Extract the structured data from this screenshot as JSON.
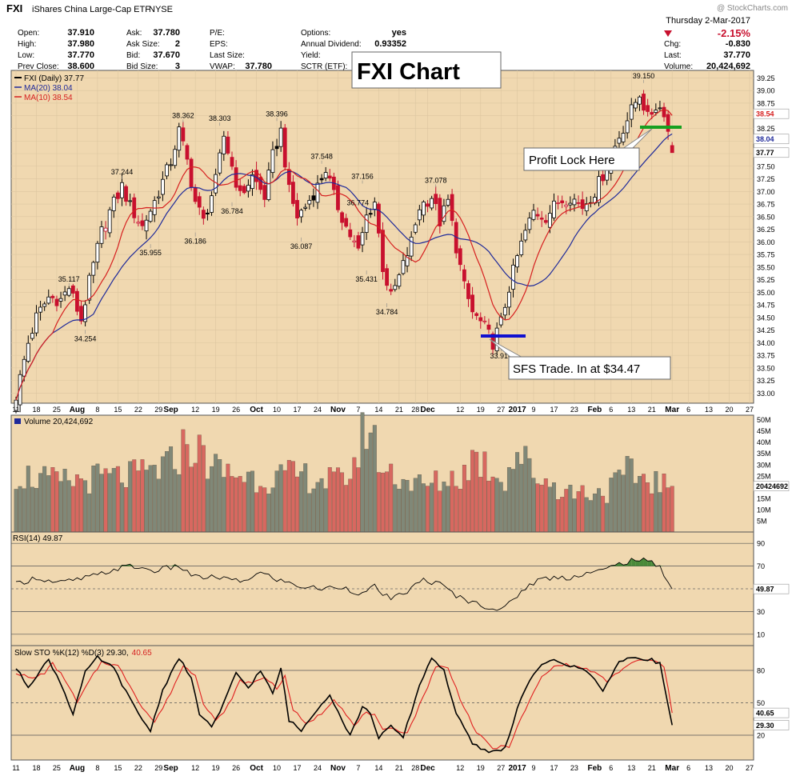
{
  "header": {
    "symbol": "FXI",
    "name": "iShares China Large-Cap ETF",
    "exchange": "NYSE",
    "watermark": "@ StockCharts.com",
    "date": "Thursday  2-Mar-2017",
    "change_pct": "-2.15%",
    "col1": [
      {
        "label": "Open:",
        "value": "37.910"
      },
      {
        "label": "High:",
        "value": "37.980"
      },
      {
        "label": "Low:",
        "value": "37.770"
      },
      {
        "label": "Prev Close:",
        "value": "38.600"
      }
    ],
    "col2": [
      {
        "label": "Ask:",
        "value": "37.780"
      },
      {
        "label": "Ask Size:",
        "value": "2"
      },
      {
        "label": "Bid:",
        "value": "37.670"
      },
      {
        "label": "Bid Size:",
        "value": "3"
      }
    ],
    "col3": [
      {
        "label": "P/E:",
        "value": ""
      },
      {
        "label": "EPS:",
        "value": ""
      },
      {
        "label": "Last Size:",
        "value": ""
      },
      {
        "label": "VWAP:",
        "value": "37.780"
      }
    ],
    "col4": [
      {
        "label": "Options:",
        "value": "yes"
      },
      {
        "label": "Annual Dividend:",
        "value": "0.93352"
      },
      {
        "label": "Yield:",
        "value": ""
      },
      {
        "label": "SCTR (ETF):",
        "value": ""
      }
    ],
    "col5": [
      {
        "label": "Chg:",
        "value": "-0.830"
      },
      {
        "label": "Last:",
        "value": "37.770"
      },
      {
        "label": "Volume:",
        "value": "20,424,692"
      }
    ]
  },
  "annotations": {
    "chart_title": "FXI Chart",
    "profit_lock": "Profit Lock Here",
    "sfs_trade": "SFS Trade. In at $34.47"
  },
  "legend": {
    "price": "FXI (Daily) 37.77",
    "ma20": "MA(20) 38.04",
    "ma10": "MA(10) 38.54",
    "volume": "Volume 20,424,692",
    "rsi": "RSI(14) 49.87",
    "sto_prefix": "Slow STO %K(12) %D(3) 29.30,",
    "sto_d": "40.65"
  },
  "right_tags": {
    "ma10": "38.54",
    "ma20": "38.04",
    "last": "37.77",
    "volume": "20424692",
    "rsi": "49.87",
    "sto_d": "40.65",
    "sto_k": "29.30"
  },
  "colors": {
    "panel_bg": "#f0d8b0",
    "up": "#ffffff",
    "down": "#c8102e",
    "ma20": "#1f2a9a",
    "ma10": "#d62020",
    "vol_up": "#808878",
    "vol_down": "#d86860",
    "rsi_fill": "#4a8a3a",
    "green_line": "#16a020",
    "blue_line": "#1010d0"
  },
  "chart_data": {
    "type": "candlestick",
    "title": "FXI Chart",
    "price_axis": {
      "range": [
        32.8,
        39.4
      ],
      "ticks": [
        "33.00",
        "33.25",
        "33.50",
        "33.75",
        "34.00",
        "34.25",
        "34.50",
        "34.75",
        "35.00",
        "35.25",
        "35.50",
        "35.75",
        "36.00",
        "36.25",
        "36.50",
        "36.75",
        "37.00",
        "37.25",
        "37.50",
        "37.75",
        "38.00",
        "38.25",
        "38.50",
        "38.75",
        "39.00",
        "39.25"
      ]
    },
    "x_axis_labels": [
      {
        "label": "11",
        "day": 0,
        "bold": false
      },
      {
        "label": "18",
        "day": 5,
        "bold": false
      },
      {
        "label": "25",
        "day": 10,
        "bold": false
      },
      {
        "label": "Aug",
        "day": 15,
        "bold": true
      },
      {
        "label": "8",
        "day": 20,
        "bold": false
      },
      {
        "label": "15",
        "day": 25,
        "bold": false
      },
      {
        "label": "22",
        "day": 30,
        "bold": false
      },
      {
        "label": "29",
        "day": 35,
        "bold": false
      },
      {
        "label": "Sep",
        "day": 38,
        "bold": true
      },
      {
        "label": "12",
        "day": 44,
        "bold": false
      },
      {
        "label": "19",
        "day": 49,
        "bold": false
      },
      {
        "label": "26",
        "day": 54,
        "bold": false
      },
      {
        "label": "Oct",
        "day": 59,
        "bold": true
      },
      {
        "label": "10",
        "day": 64,
        "bold": false
      },
      {
        "label": "17",
        "day": 69,
        "bold": false
      },
      {
        "label": "24",
        "day": 74,
        "bold": false
      },
      {
        "label": "Nov",
        "day": 79,
        "bold": true
      },
      {
        "label": "7",
        "day": 84,
        "bold": false
      },
      {
        "label": "14",
        "day": 89,
        "bold": false
      },
      {
        "label": "21",
        "day": 94,
        "bold": false
      },
      {
        "label": "28",
        "day": 98,
        "bold": false
      },
      {
        "label": "Dec",
        "day": 101,
        "bold": true
      },
      {
        "label": "12",
        "day": 109,
        "bold": false
      },
      {
        "label": "19",
        "day": 114,
        "bold": false
      },
      {
        "label": "27",
        "day": 119,
        "bold": false
      },
      {
        "label": "2017",
        "day": 123,
        "bold": true
      },
      {
        "label": "9",
        "day": 127,
        "bold": false
      },
      {
        "label": "17",
        "day": 132,
        "bold": false
      },
      {
        "label": "23",
        "day": 137,
        "bold": false
      },
      {
        "label": "Feb",
        "day": 142,
        "bold": true
      },
      {
        "label": "6",
        "day": 146,
        "bold": false
      },
      {
        "label": "13",
        "day": 151,
        "bold": false
      },
      {
        "label": "21",
        "day": 156,
        "bold": false
      },
      {
        "label": "Mar",
        "day": 161,
        "bold": true
      },
      {
        "label": "6",
        "day": 165,
        "bold": false
      },
      {
        "label": "13",
        "day": 170,
        "bold": false
      },
      {
        "label": "20",
        "day": 175,
        "bold": false
      },
      {
        "label": "27",
        "day": 180,
        "bold": false
      }
    ],
    "last_day": 161,
    "price_anchors": [
      [
        0,
        32.95
      ],
      [
        3,
        34.0
      ],
      [
        5,
        34.5
      ],
      [
        8,
        34.9
      ],
      [
        11,
        34.85
      ],
      [
        13,
        35.1
      ],
      [
        16,
        34.45
      ],
      [
        18,
        35.2
      ],
      [
        21,
        36.2
      ],
      [
        23,
        36.6
      ],
      [
        26,
        37.1
      ],
      [
        28,
        36.7
      ],
      [
        31,
        36.3
      ],
      [
        34,
        36.8
      ],
      [
        38,
        37.6
      ],
      [
        40,
        38.2
      ],
      [
        42,
        37.6
      ],
      [
        44,
        36.8
      ],
      [
        46,
        36.4
      ],
      [
        49,
        37.2
      ],
      [
        51,
        38.1
      ],
      [
        53,
        37.5
      ],
      [
        55,
        36.9
      ],
      [
        58,
        37.3
      ],
      [
        61,
        36.9
      ],
      [
        63,
        37.7
      ],
      [
        65,
        38.2
      ],
      [
        67,
        37.0
      ],
      [
        69,
        36.5
      ],
      [
        71,
        36.7
      ],
      [
        74,
        37.1
      ],
      [
        76,
        37.45
      ],
      [
        78,
        36.9
      ],
      [
        81,
        36.3
      ],
      [
        84,
        35.8
      ],
      [
        86,
        36.5
      ],
      [
        88,
        36.8
      ],
      [
        90,
        35.5
      ],
      [
        92,
        34.9
      ],
      [
        94,
        35.3
      ],
      [
        97,
        36.0
      ],
      [
        99,
        36.7
      ],
      [
        102,
        36.9
      ],
      [
        104,
        36.4
      ],
      [
        106,
        36.8
      ],
      [
        108,
        35.9
      ],
      [
        110,
        35.1
      ],
      [
        112,
        34.6
      ],
      [
        115,
        34.3
      ],
      [
        117,
        34.0
      ],
      [
        119,
        34.4
      ],
      [
        121,
        35.1
      ],
      [
        123,
        35.7
      ],
      [
        125,
        36.2
      ],
      [
        127,
        36.6
      ],
      [
        130,
        36.5
      ],
      [
        133,
        36.8
      ],
      [
        136,
        36.9
      ],
      [
        139,
        36.7
      ],
      [
        142,
        37.0
      ],
      [
        145,
        37.5
      ],
      [
        148,
        38.1
      ],
      [
        151,
        38.6
      ],
      [
        153,
        38.95
      ],
      [
        155,
        38.45
      ],
      [
        157,
        38.7
      ],
      [
        159,
        38.6
      ],
      [
        161,
        37.77
      ]
    ],
    "ma_20_last": 38.04,
    "ma_10_last": 38.54,
    "price_labels": [
      {
        "value": "35.117",
        "day": 13,
        "pos": "above"
      },
      {
        "value": "34.254",
        "day": 17,
        "pos": "below"
      },
      {
        "value": "37.244",
        "day": 26,
        "pos": "above"
      },
      {
        "value": "35.955",
        "day": 33,
        "pos": "below"
      },
      {
        "value": "38.362",
        "day": 41,
        "pos": "above"
      },
      {
        "value": "36.186",
        "day": 44,
        "pos": "below"
      },
      {
        "value": "38.303",
        "day": 50,
        "pos": "above"
      },
      {
        "value": "36.784",
        "day": 53,
        "pos": "below"
      },
      {
        "value": "38.396",
        "day": 64,
        "pos": "above"
      },
      {
        "value": "36.087",
        "day": 70,
        "pos": "below"
      },
      {
        "value": "37.548",
        "day": 75,
        "pos": "above"
      },
      {
        "value": "36.774",
        "day": 80,
        "pos": "right"
      },
      {
        "value": "37.156",
        "day": 85,
        "pos": "above"
      },
      {
        "value": "35.431",
        "day": 86,
        "pos": "below"
      },
      {
        "value": "34.784",
        "day": 91,
        "pos": "below"
      },
      {
        "value": "37.078",
        "day": 103,
        "pos": "above"
      },
      {
        "value": "39.150",
        "day": 154,
        "pos": "above"
      },
      {
        "value": "33.910",
        "day": 119,
        "pos": "below"
      }
    ],
    "volume_axis": {
      "range": [
        0,
        52
      ],
      "ticks": [
        "5M",
        "10M",
        "15M",
        "20M",
        "25M",
        "30M",
        "35M",
        "40M",
        "45M",
        "50M"
      ]
    },
    "volume_anchors": [
      [
        0,
        26
      ],
      [
        10,
        22
      ],
      [
        20,
        24
      ],
      [
        30,
        25
      ],
      [
        38,
        30
      ],
      [
        42,
        40
      ],
      [
        50,
        27
      ],
      [
        60,
        24
      ],
      [
        70,
        25
      ],
      [
        80,
        22
      ],
      [
        84,
        34
      ],
      [
        86,
        50
      ],
      [
        90,
        28
      ],
      [
        100,
        20
      ],
      [
        110,
        26
      ],
      [
        112,
        34
      ],
      [
        120,
        24
      ],
      [
        123,
        36
      ],
      [
        127,
        26
      ],
      [
        135,
        18
      ],
      [
        145,
        18
      ],
      [
        150,
        26
      ],
      [
        155,
        24
      ],
      [
        161,
        20
      ]
    ],
    "rsi_axis": {
      "ticks": [
        "10",
        "30",
        "50",
        "70",
        "90"
      ]
    },
    "rsi_anchors": [
      [
        0,
        54
      ],
      [
        5,
        60
      ],
      [
        10,
        55
      ],
      [
        15,
        58
      ],
      [
        20,
        62
      ],
      [
        25,
        68
      ],
      [
        28,
        70
      ],
      [
        34,
        66
      ],
      [
        40,
        70
      ],
      [
        44,
        60
      ],
      [
        50,
        60
      ],
      [
        55,
        56
      ],
      [
        60,
        64
      ],
      [
        65,
        57
      ],
      [
        70,
        52
      ],
      [
        75,
        50
      ],
      [
        80,
        52
      ],
      [
        85,
        45
      ],
      [
        88,
        52
      ],
      [
        92,
        40
      ],
      [
        96,
        48
      ],
      [
        100,
        58
      ],
      [
        104,
        54
      ],
      [
        108,
        44
      ],
      [
        112,
        38
      ],
      [
        118,
        32
      ],
      [
        120,
        33
      ],
      [
        124,
        48
      ],
      [
        128,
        58
      ],
      [
        132,
        60
      ],
      [
        136,
        60
      ],
      [
        140,
        64
      ],
      [
        144,
        66
      ],
      [
        148,
        72
      ],
      [
        152,
        76
      ],
      [
        155,
        74
      ],
      [
        158,
        70
      ],
      [
        161,
        49.87
      ]
    ],
    "sto_axis": {
      "ticks": [
        "20",
        "50",
        "80"
      ]
    },
    "sto_k_anchors": [
      [
        0,
        82
      ],
      [
        3,
        65
      ],
      [
        6,
        80
      ],
      [
        8,
        90
      ],
      [
        11,
        68
      ],
      [
        14,
        40
      ],
      [
        17,
        78
      ],
      [
        20,
        92
      ],
      [
        24,
        82
      ],
      [
        27,
        60
      ],
      [
        30,
        40
      ],
      [
        33,
        24
      ],
      [
        36,
        62
      ],
      [
        40,
        92
      ],
      [
        43,
        72
      ],
      [
        45,
        40
      ],
      [
        48,
        28
      ],
      [
        50,
        40
      ],
      [
        54,
        78
      ],
      [
        57,
        64
      ],
      [
        60,
        80
      ],
      [
        63,
        58
      ],
      [
        65,
        82
      ],
      [
        67,
        34
      ],
      [
        70,
        24
      ],
      [
        74,
        45
      ],
      [
        77,
        58
      ],
      [
        80,
        34
      ],
      [
        82,
        20
      ],
      [
        85,
        46
      ],
      [
        87,
        40
      ],
      [
        89,
        18
      ],
      [
        92,
        28
      ],
      [
        95,
        18
      ],
      [
        99,
        66
      ],
      [
        102,
        92
      ],
      [
        105,
        80
      ],
      [
        108,
        40
      ],
      [
        112,
        12
      ],
      [
        116,
        4
      ],
      [
        120,
        8
      ],
      [
        124,
        56
      ],
      [
        128,
        82
      ],
      [
        132,
        90
      ],
      [
        136,
        84
      ],
      [
        140,
        80
      ],
      [
        144,
        62
      ],
      [
        148,
        88
      ],
      [
        152,
        92
      ],
      [
        156,
        90
      ],
      [
        158,
        86
      ],
      [
        161,
        29.3
      ]
    ],
    "sto_d_anchors": [
      [
        0,
        78
      ],
      [
        4,
        72
      ],
      [
        7,
        78
      ],
      [
        9,
        86
      ],
      [
        12,
        72
      ],
      [
        15,
        50
      ],
      [
        18,
        70
      ],
      [
        21,
        88
      ],
      [
        25,
        84
      ],
      [
        28,
        66
      ],
      [
        31,
        46
      ],
      [
        34,
        32
      ],
      [
        37,
        52
      ],
      [
        41,
        84
      ],
      [
        44,
        76
      ],
      [
        46,
        50
      ],
      [
        49,
        34
      ],
      [
        51,
        40
      ],
      [
        55,
        70
      ],
      [
        58,
        68
      ],
      [
        61,
        74
      ],
      [
        64,
        64
      ],
      [
        66,
        74
      ],
      [
        68,
        44
      ],
      [
        71,
        30
      ],
      [
        75,
        40
      ],
      [
        78,
        54
      ],
      [
        81,
        40
      ],
      [
        83,
        28
      ],
      [
        86,
        42
      ],
      [
        88,
        38
      ],
      [
        90,
        24
      ],
      [
        93,
        26
      ],
      [
        96,
        22
      ],
      [
        100,
        56
      ],
      [
        103,
        84
      ],
      [
        106,
        82
      ],
      [
        109,
        54
      ],
      [
        113,
        22
      ],
      [
        117,
        8
      ],
      [
        121,
        10
      ],
      [
        125,
        44
      ],
      [
        129,
        74
      ],
      [
        133,
        86
      ],
      [
        137,
        84
      ],
      [
        141,
        80
      ],
      [
        145,
        70
      ],
      [
        149,
        82
      ],
      [
        153,
        90
      ],
      [
        157,
        88
      ],
      [
        159,
        84
      ],
      [
        161,
        40.65
      ]
    ]
  }
}
